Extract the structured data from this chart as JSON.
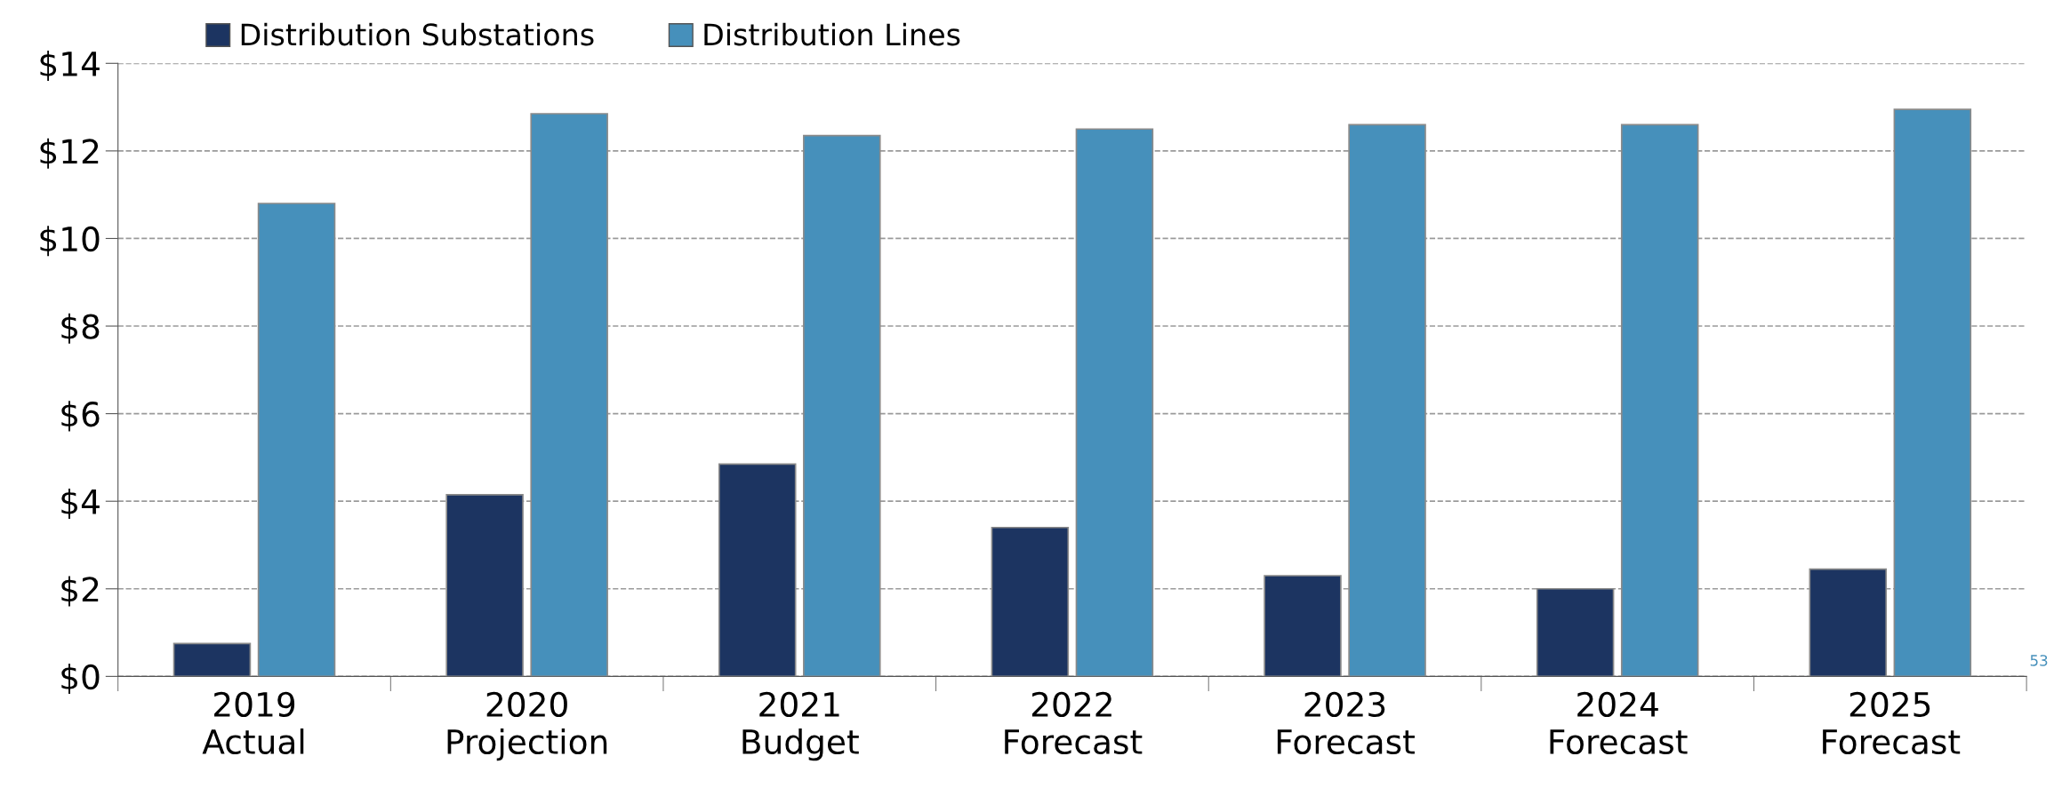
{
  "chart_data": {
    "type": "bar",
    "categories": [
      "2019\nActual",
      "2020\nProjection",
      "2021\nBudget",
      "2022\nForecast",
      "2023\nForecast",
      "2024\nForecast",
      "2025\nForecast"
    ],
    "series": [
      {
        "name": "Distribution Substations",
        "color": "#1c3461",
        "values": [
          0.75,
          4.15,
          4.85,
          3.4,
          2.3,
          2.0,
          2.45
        ]
      },
      {
        "name": "Distribution Lines",
        "color": "#4690bb",
        "values": [
          10.8,
          12.85,
          12.35,
          12.5,
          12.6,
          12.6,
          12.95
        ]
      }
    ],
    "ylim": [
      0,
      14
    ],
    "yticks": [
      {
        "value": 0,
        "label": "$0"
      },
      {
        "value": 2,
        "label": "$2"
      },
      {
        "value": 4,
        "label": "$4"
      },
      {
        "value": 6,
        "label": "$6"
      },
      {
        "value": 8,
        "label": "$8"
      },
      {
        "value": 10,
        "label": "$10"
      },
      {
        "value": 12,
        "label": "$12"
      },
      {
        "value": 14,
        "label": "$14"
      }
    ],
    "grid": "y",
    "legend": "top left",
    "annotations": [
      "53"
    ]
  }
}
